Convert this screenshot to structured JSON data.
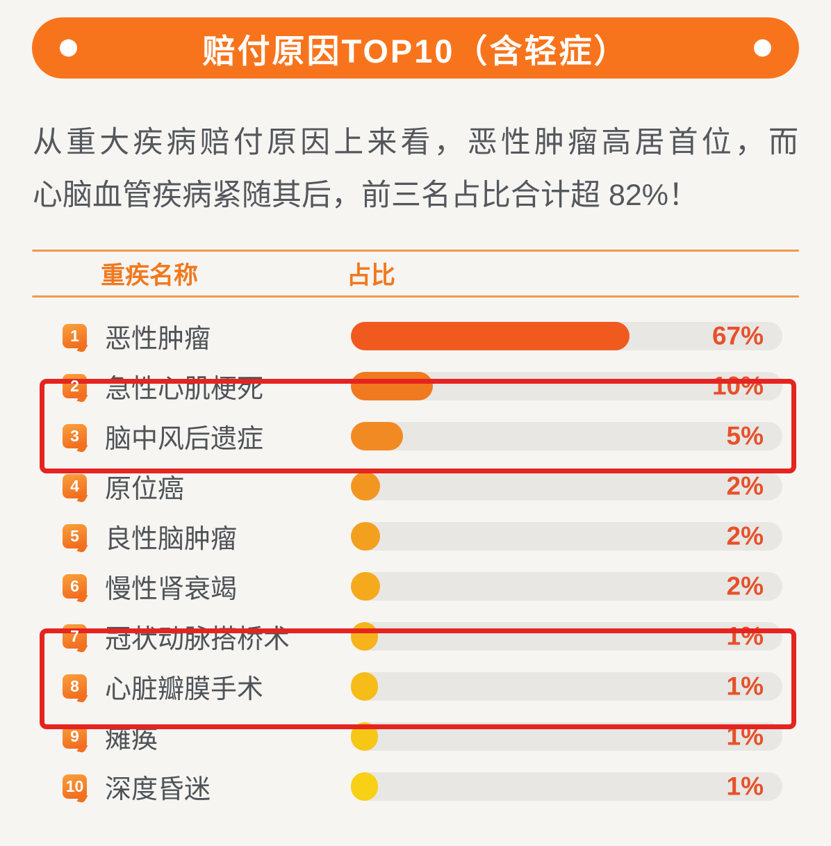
{
  "banner": {
    "title": "赔付原因TOP10（含轻症）",
    "background_color": "#F8741C",
    "dot_color": "#FFFFFF"
  },
  "description": {
    "line1": "从重大疾病赔付原因上来看，恶性肿瘤高居首位，而",
    "line2": "心脑血管疾病紧随其后，前三名占比合计超 82%！"
  },
  "table_header": {
    "name_column": "重疾名称",
    "share_column": "占比"
  },
  "chart_data": {
    "type": "bar",
    "orientation": "horizontal",
    "title": "赔付原因TOP10（含轻症）",
    "xlabel": "占比",
    "ylabel": "重疾名称",
    "xlim": [
      0,
      100
    ],
    "grid": false,
    "categories": [
      "恶性肿瘤",
      "急性心肌梗死",
      "脑中风后遗症",
      "原位癌",
      "良性脑肿瘤",
      "慢性肾衰竭",
      "冠状动脉搭桥术",
      "心脏瓣膜手术",
      "瘫痪",
      "深度昏迷"
    ],
    "ranks": [
      1,
      2,
      3,
      4,
      5,
      6,
      7,
      8,
      9,
      10
    ],
    "values": [
      67,
      10,
      5,
      2,
      2,
      2,
      1,
      1,
      1,
      1
    ],
    "value_labels": [
      "67%",
      "10%",
      "5%",
      "2%",
      "2%",
      "2%",
      "1%",
      "1%",
      "1%",
      "1%"
    ],
    "bar_fill_pct": [
      64.5,
      19,
      12,
      6.8,
      6.8,
      6.8,
      6.3,
      6.3,
      6.3,
      6.3
    ],
    "bar_colors": [
      "#F05A1E",
      "#F1791F",
      "#F28A24",
      "#F39621",
      "#F4A01F",
      "#F5AA1D",
      "#F6B31B",
      "#F6BD19",
      "#F7C717",
      "#F8D015"
    ],
    "track_color": "#E9E7E4",
    "value_label_color": "#E6512A",
    "highlighted_rank_groups": [
      [
        2,
        3
      ],
      [
        7,
        8
      ]
    ],
    "highlight_border_color": "#E52420"
  }
}
